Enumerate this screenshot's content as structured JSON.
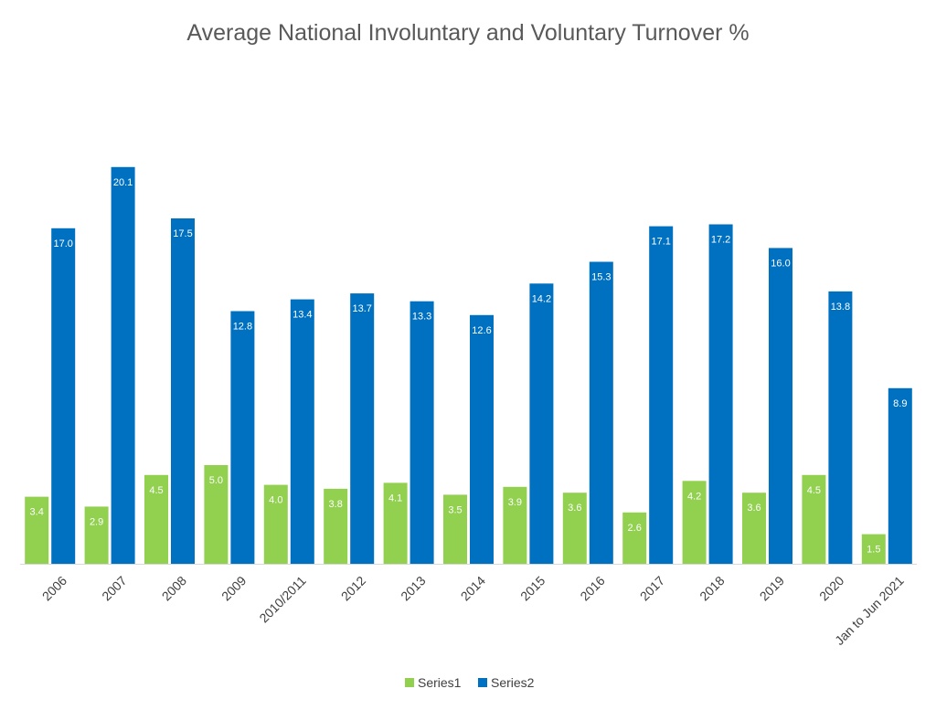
{
  "chart_data": {
    "type": "bar",
    "title": "Average National Involuntary and Voluntary Turnover %",
    "xlabel": "",
    "ylabel": "",
    "ylim": [
      0,
      22
    ],
    "grid": false,
    "legend_position": "bottom",
    "categories": [
      "2006",
      "2007",
      "2008",
      "2009",
      "2010/2011",
      "2012",
      "2013",
      "2014",
      "2015",
      "2016",
      "2017",
      "2018",
      "2019",
      "2020",
      "Jan to Jun 2021"
    ],
    "series": [
      {
        "name": "Series1",
        "color": "#92D050",
        "values": [
          3.4,
          2.9,
          4.5,
          5.0,
          4.0,
          3.8,
          4.1,
          3.5,
          3.9,
          3.6,
          2.6,
          4.2,
          3.6,
          4.5,
          1.5
        ],
        "labels": [
          "3.4",
          "2.9",
          "4.5",
          "5.0",
          "4.0",
          "3.8",
          "4.1",
          "3.5",
          "3.9",
          "3.6",
          "2.6",
          "4.2",
          "3.6",
          "4.5",
          "1.5"
        ]
      },
      {
        "name": "Series2",
        "color": "#0070C0",
        "values": [
          17.0,
          20.1,
          17.5,
          12.8,
          13.4,
          13.7,
          13.3,
          12.6,
          14.2,
          15.3,
          17.1,
          17.2,
          16.0,
          13.8,
          8.9
        ],
        "labels": [
          "17.0",
          "20.1",
          "17.5",
          "12.8",
          "13.4",
          "13.7",
          "13.3",
          "12.6",
          "14.2",
          "15.3",
          "17.1",
          "17.2",
          "16.0",
          "13.8",
          "8.9"
        ]
      }
    ]
  }
}
